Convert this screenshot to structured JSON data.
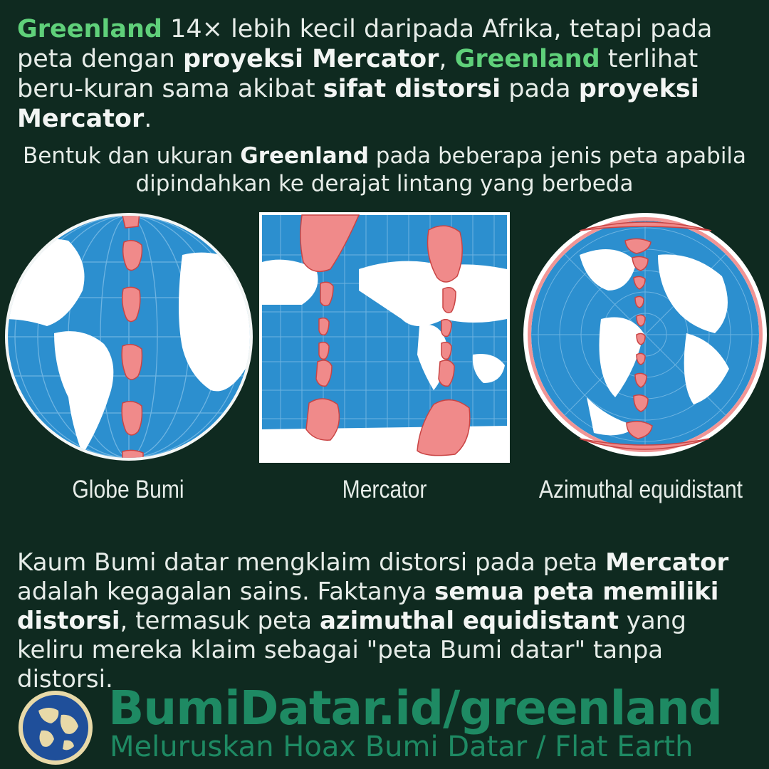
{
  "intro": {
    "s1": "Greenland",
    "s2": " 14× lebih kecil daripada Afrika, tetapi pada peta dengan ",
    "s3": "proyeksi Mercator",
    "s4": ", ",
    "s5": "Greenland",
    "s6": " terlihat beru-kuran sama akibat ",
    "s7": "sifat distorsi",
    "s8": " pada ",
    "s9": "proyeksi Mercator",
    "s10": "."
  },
  "subtitle": {
    "s1": "Bentuk dan ukuran ",
    "s2": "Greenland",
    "s3": " pada beberapa jenis peta apabila dipindahkan ke derajat lintang yang berbeda"
  },
  "maps": {
    "globe_label": "Globe Bumi",
    "mercator_label": "Mercator",
    "azimuthal_label": "Azimuthal equidistant"
  },
  "claim": {
    "s1": "Kaum Bumi datar mengklaim distorsi pada peta ",
    "s2": "Mercator",
    "s3": " adalah kegagalan sains. Faktanya ",
    "s4": "semua peta memiliki distorsi",
    "s5": ", termasuk peta ",
    "s6": "azimuthal equidistant",
    "s7": " yang keliru mereka klaim sebagai \"peta Bumi datar\" tanpa distorsi."
  },
  "footer": {
    "url": "BumiDatar.id/greenland",
    "tagline": "Meluruskan Hoax Bumi Datar / Flat Earth"
  },
  "colors": {
    "background": "#0f2a20",
    "ocean": "#2c8fcf",
    "land": "#ffffff",
    "greenland_overlay": "#f08a8a",
    "highlight_green": "#5fd07a",
    "brand_green": "#1e8a63"
  }
}
